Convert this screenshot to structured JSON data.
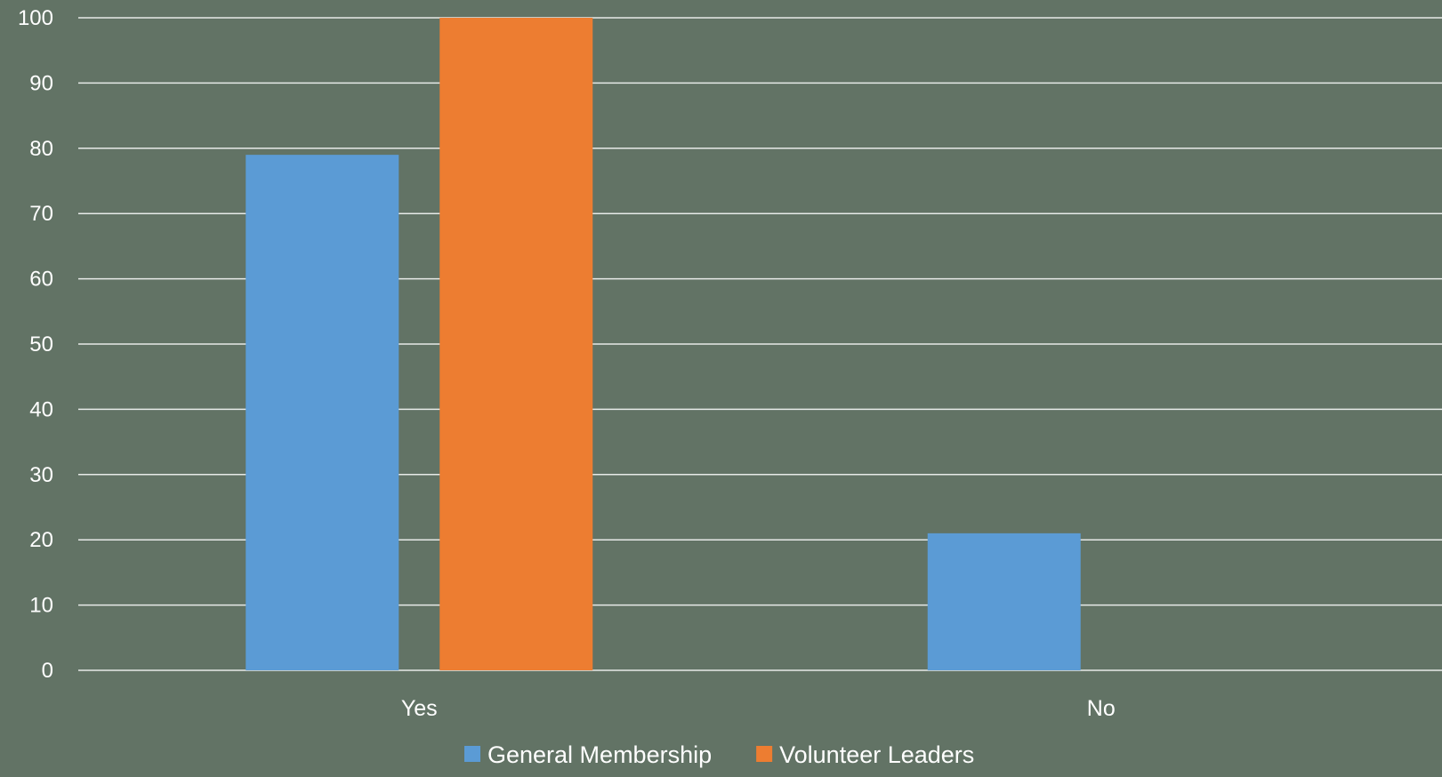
{
  "chart_data": {
    "type": "bar",
    "categories": [
      "Yes",
      "No"
    ],
    "series": [
      {
        "name": "General Membership",
        "values": [
          79,
          21
        ],
        "color": "#5b9bd5"
      },
      {
        "name": "Volunteer Leaders",
        "values": [
          100,
          0
        ],
        "color": "#ed7d31"
      }
    ],
    "ylim": [
      0,
      100
    ],
    "yticks": [
      0,
      10,
      20,
      30,
      40,
      50,
      60,
      70,
      80,
      90,
      100
    ],
    "grid": true,
    "legend_position": "bottom",
    "background_color": "#627365",
    "title": "",
    "xlabel": "",
    "ylabel": ""
  }
}
